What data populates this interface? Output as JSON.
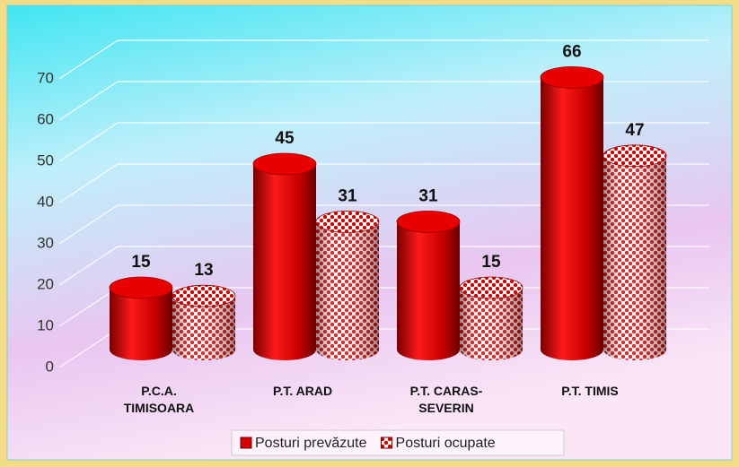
{
  "chart_data": {
    "type": "bar3d",
    "categories": [
      "P.C.A. TIMISOARA",
      "P.T. ARAD",
      "P.T. CARAS-SEVERIN",
      "P.T. TIMIS"
    ],
    "series": [
      {
        "name": "Posturi prevăzute",
        "color": "#d40000",
        "pattern": "solid",
        "values": [
          15,
          45,
          31,
          66
        ]
      },
      {
        "name": "Posturi ocupate",
        "color": "#d40000",
        "pattern": "checker",
        "values": [
          13,
          31,
          15,
          47
        ]
      }
    ],
    "ylim": [
      0,
      70
    ],
    "yticks": [
      0,
      10,
      20,
      30,
      40,
      50,
      60,
      70
    ],
    "grid": true,
    "legend": "bottom"
  }
}
